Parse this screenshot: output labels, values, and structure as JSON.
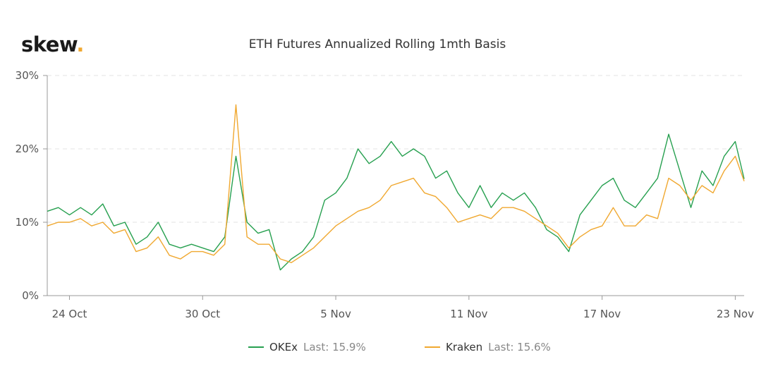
{
  "logo": {
    "text": "skew",
    "dot": "."
  },
  "chart_data": {
    "type": "line",
    "title": "ETH Futures Annualized Rolling 1mth Basis",
    "xlabel": "",
    "ylabel": "",
    "x_unit": "days since 23 Oct",
    "xlim": [
      0,
      31.4
    ],
    "ylim": [
      0,
      30
    ],
    "grid": true,
    "y_ticks": [
      {
        "value": 0,
        "label": "0%"
      },
      {
        "value": 10,
        "label": "10%"
      },
      {
        "value": 20,
        "label": "20%"
      },
      {
        "value": 30,
        "label": "30%"
      }
    ],
    "x_ticks": [
      {
        "value": 1,
        "label": "24 Oct"
      },
      {
        "value": 7,
        "label": "30 Oct"
      },
      {
        "value": 13,
        "label": "5 Nov"
      },
      {
        "value": 19,
        "label": "11 Nov"
      },
      {
        "value": 25,
        "label": "17 Nov"
      },
      {
        "value": 31,
        "label": "23 Nov"
      }
    ],
    "x": [
      0,
      0.5,
      1,
      1.5,
      2,
      2.5,
      3,
      3.5,
      4,
      4.5,
      5,
      5.5,
      6,
      6.5,
      7,
      7.5,
      8,
      8.5,
      9,
      9.5,
      10,
      10.5,
      11,
      11.5,
      12,
      12.5,
      13,
      13.5,
      14,
      14.5,
      15,
      15.5,
      16,
      16.5,
      17,
      17.5,
      18,
      18.5,
      19,
      19.5,
      20,
      20.5,
      21,
      21.5,
      22,
      22.5,
      23,
      23.5,
      24,
      24.5,
      25,
      25.5,
      26,
      26.5,
      27,
      27.5,
      28,
      28.5,
      29,
      29.5,
      30,
      30.5,
      31,
      31.4
    ],
    "series": [
      {
        "name": "OKEx",
        "color": "#27a050",
        "last_label": "Last: 15.9%",
        "values": [
          11.5,
          12,
          11,
          12,
          11,
          12.5,
          9.5,
          10,
          7,
          8,
          10,
          7,
          6.5,
          7,
          6.5,
          6,
          8,
          19,
          10,
          8.5,
          9,
          3.5,
          5,
          6,
          8,
          13,
          14,
          16,
          20,
          18,
          19,
          21,
          19,
          20,
          19,
          16,
          17,
          14,
          12,
          15,
          12,
          14,
          13,
          14,
          12,
          9,
          8,
          6,
          11,
          13,
          15,
          16,
          13,
          12,
          14,
          16,
          22,
          17,
          12,
          17,
          15,
          19,
          21,
          15.9
        ]
      },
      {
        "name": "Kraken",
        "color": "#f0a830",
        "last_label": "Last: 15.6%",
        "values": [
          9.5,
          10,
          10,
          10.5,
          9.5,
          10,
          8.5,
          9,
          6,
          6.5,
          8,
          5.5,
          5,
          6,
          6,
          5.5,
          7,
          26,
          8,
          7,
          7,
          5,
          4.5,
          5.5,
          6.5,
          8,
          9.5,
          10.5,
          11.5,
          12,
          13,
          15,
          15.5,
          16,
          14,
          13.5,
          12,
          10,
          10.5,
          11,
          10.5,
          12,
          12,
          11.5,
          10.5,
          9.5,
          8.5,
          6.5,
          8,
          9,
          9.5,
          12,
          9.5,
          9.5,
          11,
          10.5,
          16,
          15,
          13,
          15,
          14,
          17,
          19,
          15.6
        ]
      }
    ]
  }
}
